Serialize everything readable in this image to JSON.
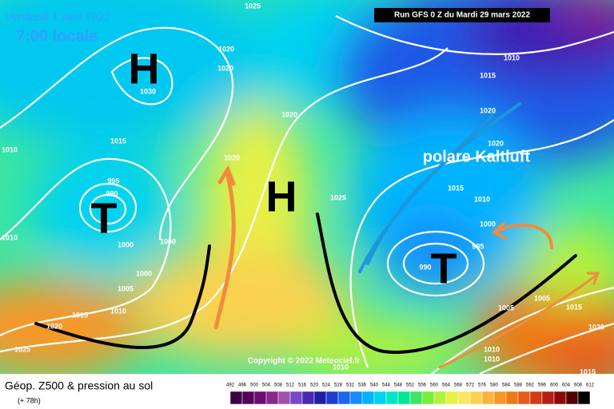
{
  "header": {
    "date": "Vendredi 1 avril 2022",
    "time": "7:00 locale",
    "run": "Run GFS 0 Z du Mardi 29 mars 2022"
  },
  "annotations": {
    "airmass": "polare Kaltluft",
    "copyright": "Copyright © 2022 Meteociel.fr"
  },
  "pressure_centers": [
    "H",
    "T",
    "H",
    "T"
  ],
  "isobar_labels": [
    "1025",
    "1020",
    "1020",
    "1030",
    "1015",
    "1020",
    "1010",
    "1015",
    "1020",
    "1020",
    "1015",
    "1010",
    "1020",
    "995",
    "990",
    "1010",
    "1000",
    "1000",
    "1000",
    "1005",
    "1010",
    "1015",
    "1020",
    "1025",
    "1025",
    "1000",
    "995",
    "990",
    "1005",
    "1015",
    "1020",
    "1005",
    "1010",
    "1010",
    "1010",
    "1015",
    "1010"
  ],
  "footer": {
    "title": "Géop. Z500 & pression au sol",
    "forecast": "(+ 78h)"
  },
  "colorbar": {
    "labels": [
      492,
      496,
      500,
      504,
      508,
      512,
      516,
      520,
      524,
      528,
      532,
      536,
      540,
      544,
      548,
      552,
      556,
      560,
      564,
      568,
      572,
      576,
      580,
      584,
      588,
      592,
      596,
      600,
      604,
      608,
      612
    ],
    "colors": [
      "#3c0046",
      "#55005a",
      "#6e0a73",
      "#87288c",
      "#a050aa",
      "#7846c8",
      "#4628b4",
      "#1e1ea0",
      "#1e3cd2",
      "#1e64f0",
      "#148cff",
      "#00b4ff",
      "#00d2f0",
      "#00e6c8",
      "#00e696",
      "#3ce664",
      "#78ee3c",
      "#b4f03c",
      "#e6f046",
      "#fae664",
      "#fad250",
      "#fab43c",
      "#fa9628",
      "#f07814",
      "#e65a1e",
      "#d23c14",
      "#b41e14",
      "#8c0a0a",
      "#500000",
      "#000000"
    ]
  }
}
